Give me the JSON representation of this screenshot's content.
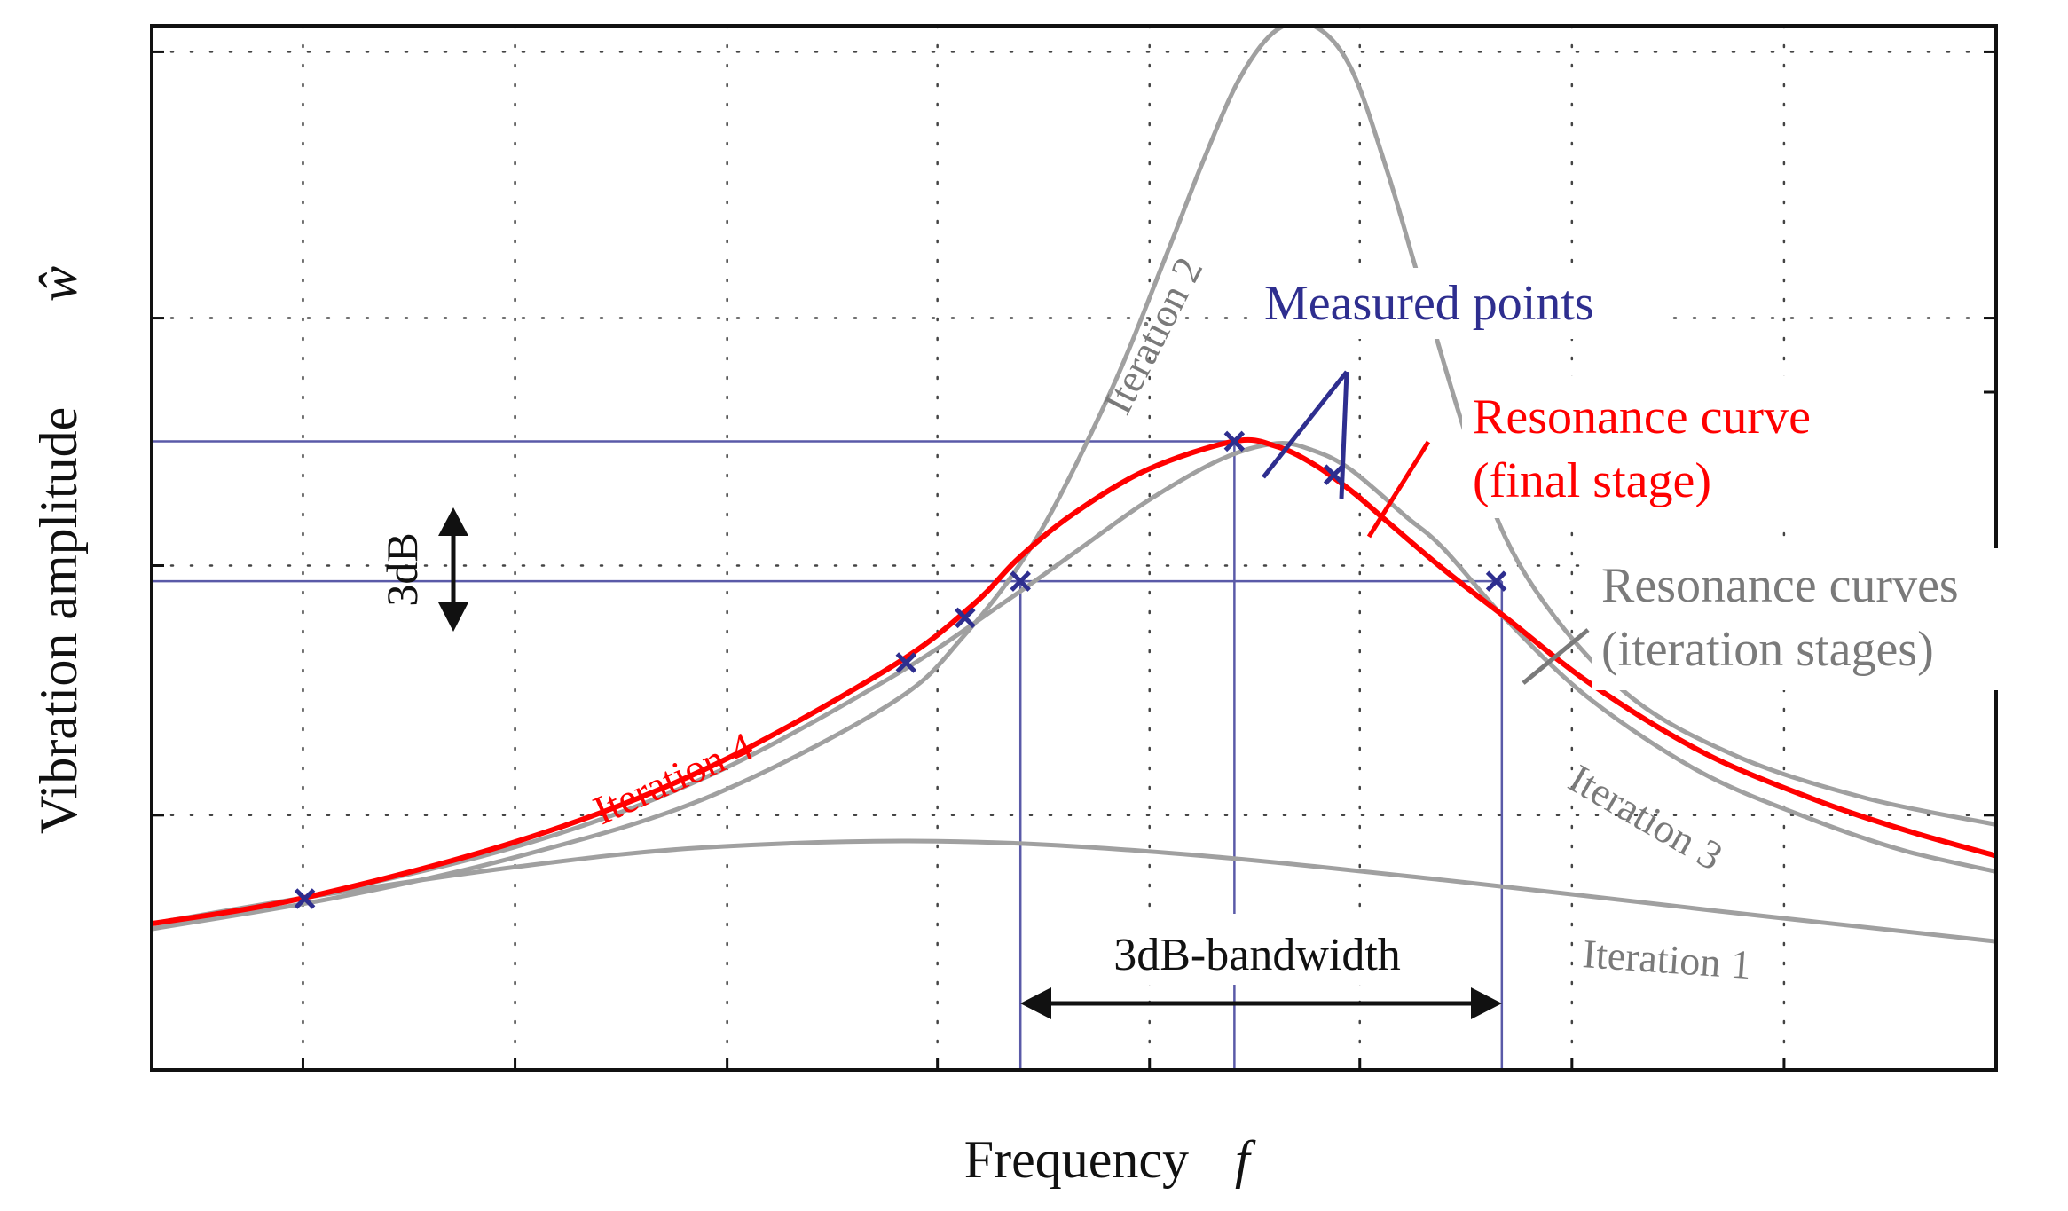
{
  "chart_data": {
    "type": "line",
    "title": "",
    "xlabel": "Frequency",
    "xlabel_symbol": "f",
    "ylabel": "Vibration amplitude",
    "ylabel_symbol": "ŵ",
    "grid": true,
    "grid_style": "dotted",
    "xlim": [
      0,
      100
    ],
    "ylim": [
      0,
      100
    ],
    "x_gridlines": [
      8.2,
      19.7,
      31.2,
      42.6,
      54.1,
      65.5,
      77,
      88.5
    ],
    "y_gridlines": [
      24.4,
      48.3,
      72,
      97.5
    ],
    "series": [
      {
        "name": "Iteration 1",
        "label": "Iteration 1",
        "color": "#a0a0a0",
        "x": [
          0,
          8.3,
          20,
          30,
          42.6,
          55,
          70,
          85,
          100
        ],
        "y": [
          14,
          16.5,
          19.5,
          21.3,
          21.9,
          20.8,
          18.2,
          15.2,
          12.3
        ]
      },
      {
        "name": "Iteration 2",
        "label": "Iteration 2",
        "color": "#a0a0a0",
        "x": [
          0,
          10,
          20,
          30,
          40,
          44,
          48,
          52,
          55,
          57,
          59,
          61,
          63,
          65,
          67,
          69,
          72,
          75,
          80,
          86,
          93,
          100
        ],
        "y": [
          13.5,
          16.5,
          20.5,
          26,
          35,
          41.5,
          51,
          65,
          78,
          87,
          95,
          99.6,
          100,
          96,
          86,
          74,
          57,
          46,
          36,
          30,
          26,
          23.5
        ]
      },
      {
        "name": "Iteration 3",
        "label": "Iteration 3",
        "color": "#a0a0a0",
        "x": [
          0,
          8.3,
          20,
          30,
          40,
          46,
          50,
          54,
          58,
          61,
          63,
          65,
          68,
          70,
          73.5,
          78,
          84,
          90,
          95,
          100
        ],
        "y": [
          13.5,
          16.5,
          21.5,
          28,
          37.5,
          44.5,
          49.5,
          54.5,
          58.5,
          60,
          59.3,
          57.5,
          53,
          50,
          43,
          35.5,
          28.5,
          24,
          21,
          19
        ]
      },
      {
        "name": "Resonance curve (final stage)",
        "label": "Iteration 4",
        "color": "#ff0000",
        "x": [
          0,
          8.3,
          20,
          30,
          40,
          44.5,
          47,
          50,
          54,
          58.7,
          61,
          63,
          65,
          67,
          70,
          73.5,
          78,
          84,
          90,
          95,
          100
        ],
        "y": [
          14,
          16.5,
          22,
          28.8,
          38.5,
          44.5,
          49,
          53.3,
          57.5,
          60.2,
          59.7,
          58,
          55.5,
          52.5,
          48,
          43.2,
          37,
          30.5,
          26,
          23,
          20.5
        ]
      }
    ],
    "measured_points": {
      "name": "Measured points",
      "color": "#2e2e8f",
      "x": [
        8.3,
        40.9,
        44.1,
        47.1,
        58.7,
        64.1,
        72.9
      ],
      "y": [
        16.4,
        39,
        43.3,
        46.8,
        60.2,
        57,
        46.8
      ]
    },
    "reference_lines": {
      "color": "#5a5aa8",
      "peak_level": 60.2,
      "minus_3dB_level": 46.8,
      "peak_frequency": 58.7,
      "lower_band_frequency": 47.1,
      "upper_band_frequency": 73.2
    }
  },
  "annotations": {
    "measured_points_label": "Measured points",
    "resonance_final_line1": "Resonance curve",
    "resonance_final_line2": "(final stage)",
    "resonance_iter_line1": "Resonance curves",
    "resonance_iter_line2": "(iteration stages)",
    "three_db": "3dB",
    "bandwidth": "3dB-bandwidth",
    "iteration_1": "Iteration 1",
    "iteration_2": "Iteration 2",
    "iteration_3": "Iteration 3",
    "iteration_4": "Iteration 4"
  },
  "colors": {
    "red": "#ff0000",
    "gray": "#a0a0a0",
    "navy": "#2e2e8f",
    "ref_blue": "#5a5aa8",
    "black": "#111111",
    "label_gray": "#7a7a7a"
  }
}
